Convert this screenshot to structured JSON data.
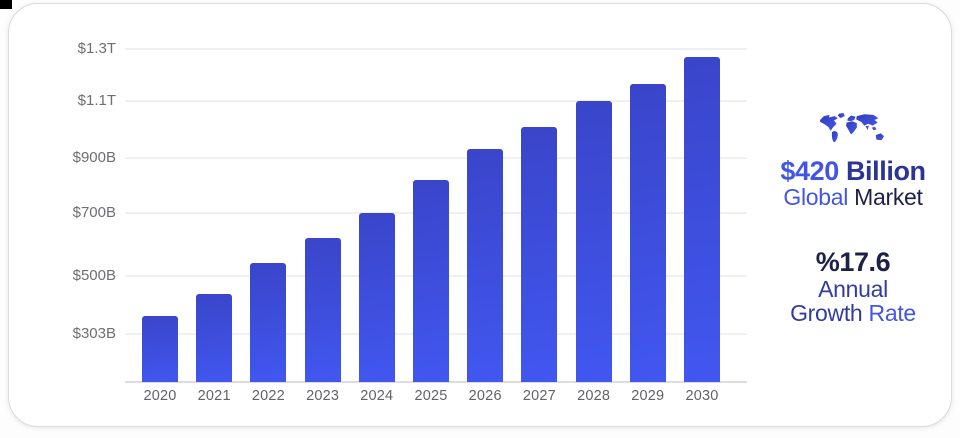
{
  "chart_data": {
    "type": "bar",
    "title": "",
    "categories": [
      "2020",
      "2021",
      "2022",
      "2023",
      "2024",
      "2025",
      "2026",
      "2027",
      "2028",
      "2029",
      "2030"
    ],
    "values": [
      365,
      440,
      540,
      620,
      700,
      820,
      930,
      1010,
      1100,
      1165,
      1270
    ],
    "unit": "USD billions",
    "xlabel": "",
    "ylabel": "",
    "y_ticks": [
      {
        "label": "$303B",
        "value": 303
      },
      {
        "label": "$500B",
        "value": 500
      },
      {
        "label": "$700B",
        "value": 700
      },
      {
        "label": "$900B",
        "value": 900
      },
      {
        "label": "$1.1T",
        "value": 1100
      },
      {
        "label": "$1.3T",
        "value": 1300
      }
    ],
    "ylim": [
      140,
      1340
    ],
    "grid": "horizontal",
    "legend": false,
    "bar_colors": {
      "top": "#3A45C9",
      "bottom": "#4157F0"
    }
  },
  "stats": {
    "market": {
      "icon": "world-map-icon",
      "headline": [
        {
          "text": "$420 ",
          "color": "#4355E8"
        },
        {
          "text": "Billion",
          "color": "#2B3598"
        }
      ],
      "subline": [
        {
          "text": "Global ",
          "color": "#4355E8"
        },
        {
          "text": "Market",
          "color": "#1D2147"
        }
      ]
    },
    "growth": {
      "headline": [
        {
          "text": "%17.6",
          "color": "#1D2147"
        }
      ],
      "line1": [
        {
          "text": "Annual",
          "color": "#303D9F"
        }
      ],
      "line2": [
        {
          "text": "Growth ",
          "color": "#303D9F"
        },
        {
          "text": "Rate",
          "color": "#4355E8"
        }
      ]
    }
  }
}
